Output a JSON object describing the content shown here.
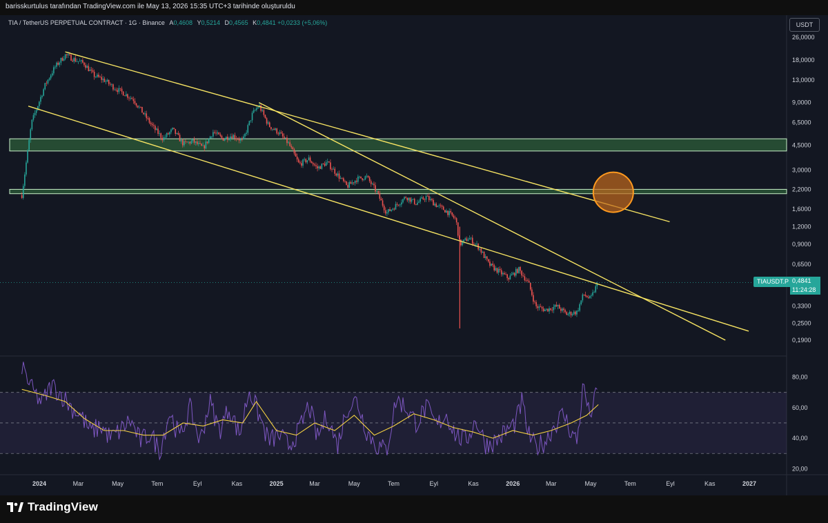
{
  "header": {
    "attribution": "barisskurtulus tarafından TradingView.com ile May 13, 2026 15:35 UTC+3 tarihinde oluşturuldu"
  },
  "legend": {
    "symbol": "TIA / TetherUS PERPETUAL CONTRACT · 1G · Binance",
    "open_label": "A",
    "open": "0,4608",
    "high_label": "Y",
    "high": "0,5214",
    "low_label": "D",
    "low": "0,4565",
    "close_label": "K",
    "close": "0,4841",
    "change": "+0,0233 (+5,06%)"
  },
  "currency": "USDT",
  "price_tag": {
    "symbol": "TIAUSDT.P",
    "price": "0,4841",
    "countdown": "11:24:28"
  },
  "footer": {
    "brand": "TradingView"
  },
  "colors": {
    "background": "#131722",
    "up": "#26a69a",
    "down": "#ef5350",
    "trendline": "#f7e463",
    "zone_fill": "#2e5d3a",
    "zone_border": "#c9f0c9",
    "circle_fill": "#c26a1c",
    "circle_stroke": "#ff9a1f",
    "rsi_line": "#7e57c2",
    "rsi_ma": "#f5d142",
    "rsi_band": "#7e57c2"
  },
  "chart_data": [
    {
      "type": "candlestick",
      "title": "TIA / TetherUS PERPETUAL CONTRACT · 1G · Binance",
      "y_scale": "log",
      "y_ticks": [
        "26,0000",
        "18,0000",
        "13,0000",
        "9,0000",
        "6,5000",
        "4,5000",
        "3,0000",
        "2,2000",
        "1,6000",
        "1,2000",
        "0,9000",
        "0,6500",
        "0,3300",
        "0,2500",
        "0,1900"
      ],
      "x_ticks": [
        "2024",
        "Mar",
        "May",
        "Tem",
        "Eyl",
        "Kas",
        "2025",
        "Mar",
        "May",
        "Tem",
        "Eyl",
        "Kas",
        "2026",
        "Mar",
        "May",
        "Tem",
        "Eyl",
        "Kas",
        "2027"
      ],
      "price_path": [
        [
          "2023-12-05",
          2.0
        ],
        [
          "2023-12-20",
          6.5
        ],
        [
          "2024-01-10",
          12.0
        ],
        [
          "2024-01-25",
          16.0
        ],
        [
          "2024-02-10",
          19.5
        ],
        [
          "2024-02-25",
          18.0
        ],
        [
          "2024-03-10",
          17.0
        ],
        [
          "2024-03-25",
          14.0
        ],
        [
          "2024-04-10",
          13.0
        ],
        [
          "2024-04-25",
          11.5
        ],
        [
          "2024-05-10",
          10.5
        ],
        [
          "2024-05-25",
          9.5
        ],
        [
          "2024-06-10",
          7.5
        ],
        [
          "2024-06-25",
          6.0
        ],
        [
          "2024-07-10",
          5.0
        ],
        [
          "2024-07-25",
          5.8
        ],
        [
          "2024-08-10",
          4.6
        ],
        [
          "2024-08-25",
          4.8
        ],
        [
          "2024-09-10",
          4.3
        ],
        [
          "2024-09-25",
          5.6
        ],
        [
          "2024-10-10",
          5.0
        ],
        [
          "2024-10-25",
          5.3
        ],
        [
          "2024-11-10",
          4.8
        ],
        [
          "2024-11-25",
          7.5
        ],
        [
          "2024-12-05",
          8.6
        ],
        [
          "2024-12-20",
          6.2
        ],
        [
          "2025-01-05",
          5.5
        ],
        [
          "2025-01-20",
          4.6
        ],
        [
          "2025-02-05",
          3.3
        ],
        [
          "2025-02-20",
          3.6
        ],
        [
          "2025-03-05",
          3.1
        ],
        [
          "2025-03-20",
          3.4
        ],
        [
          "2025-04-05",
          2.8
        ],
        [
          "2025-04-20",
          2.3
        ],
        [
          "2025-05-05",
          2.6
        ],
        [
          "2025-05-20",
          2.7
        ],
        [
          "2025-06-05",
          2.1
        ],
        [
          "2025-06-20",
          1.5
        ],
        [
          "2025-07-05",
          1.7
        ],
        [
          "2025-07-20",
          1.95
        ],
        [
          "2025-08-05",
          1.75
        ],
        [
          "2025-08-20",
          1.95
        ],
        [
          "2025-09-05",
          1.7
        ],
        [
          "2025-09-20",
          1.55
        ],
        [
          "2025-10-05",
          1.35
        ],
        [
          "2025-10-11",
          0.9
        ],
        [
          "2025-10-25",
          1.0
        ],
        [
          "2025-11-10",
          0.85
        ],
        [
          "2025-11-25",
          0.65
        ],
        [
          "2025-12-10",
          0.58
        ],
        [
          "2025-12-25",
          0.52
        ],
        [
          "2026-01-10",
          0.6
        ],
        [
          "2026-01-25",
          0.48
        ],
        [
          "2026-02-05",
          0.33
        ],
        [
          "2026-02-20",
          0.31
        ],
        [
          "2026-03-10",
          0.33
        ],
        [
          "2026-03-25",
          0.29
        ],
        [
          "2026-04-10",
          0.3
        ],
        [
          "2026-04-20",
          0.4
        ],
        [
          "2026-05-01",
          0.37
        ],
        [
          "2026-05-08",
          0.44
        ],
        [
          "2026-05-13",
          0.4841
        ]
      ],
      "wick_low": {
        "date": "2025-10-11",
        "value": 0.23
      },
      "trendlines": [
        {
          "name": "upper-resistance",
          "from": [
            "2024-02-10",
            20.5
          ],
          "to": [
            "2026-08-31",
            1.3
          ]
        },
        {
          "name": "channel-support",
          "from": [
            "2023-12-15",
            8.5
          ],
          "to": [
            "2026-12-31",
            0.22
          ]
        },
        {
          "name": "descending-resistance",
          "from": [
            "2024-12-05",
            9.0
          ],
          "to": [
            "2026-11-25",
            0.19
          ]
        }
      ],
      "zones": [
        {
          "name": "upper-supply-zone",
          "from": 4.1,
          "to": 5.0
        },
        {
          "name": "lower-supply-zone",
          "from": 2.05,
          "to": 2.2
        }
      ],
      "highlight": {
        "date": "2026-06-05",
        "value": 2.1
      }
    },
    {
      "type": "line",
      "name": "RSI",
      "y_ticks": [
        "80,00",
        "60,00",
        "40,00",
        "20,00"
      ],
      "ylim": [
        17,
        92
      ],
      "bands": [
        30,
        50,
        70
      ],
      "rsi_path": [
        [
          "2023-12-05",
          88
        ],
        [
          "2023-12-20",
          72
        ],
        [
          "2024-01-05",
          63
        ],
        [
          "2024-01-20",
          75
        ],
        [
          "2024-02-05",
          68
        ],
        [
          "2024-02-20",
          60
        ],
        [
          "2024-03-05",
          55
        ],
        [
          "2024-03-20",
          44
        ],
        [
          "2024-04-05",
          48
        ],
        [
          "2024-04-20",
          40
        ],
        [
          "2024-05-05",
          45
        ],
        [
          "2024-05-20",
          52
        ],
        [
          "2024-06-05",
          38
        ],
        [
          "2024-06-20",
          43
        ],
        [
          "2024-07-05",
          32
        ],
        [
          "2024-07-20",
          57
        ],
        [
          "2024-08-05",
          40
        ],
        [
          "2024-08-20",
          60
        ],
        [
          "2024-09-05",
          38
        ],
        [
          "2024-09-20",
          64
        ],
        [
          "2024-10-05",
          45
        ],
        [
          "2024-10-20",
          60
        ],
        [
          "2024-11-05",
          42
        ],
        [
          "2024-11-20",
          72
        ],
        [
          "2024-12-05",
          55
        ],
        [
          "2024-12-20",
          38
        ],
        [
          "2025-01-05",
          42
        ],
        [
          "2025-01-20",
          35
        ],
        [
          "2025-02-05",
          45
        ],
        [
          "2025-02-20",
          62
        ],
        [
          "2025-03-05",
          40
        ],
        [
          "2025-03-20",
          55
        ],
        [
          "2025-04-05",
          35
        ],
        [
          "2025-04-20",
          60
        ],
        [
          "2025-05-05",
          65
        ],
        [
          "2025-05-20",
          45
        ],
        [
          "2025-06-05",
          35
        ],
        [
          "2025-06-20",
          32
        ],
        [
          "2025-07-05",
          66
        ],
        [
          "2025-07-20",
          60
        ],
        [
          "2025-08-05",
          50
        ],
        [
          "2025-08-20",
          60
        ],
        [
          "2025-09-05",
          48
        ],
        [
          "2025-09-20",
          56
        ],
        [
          "2025-10-05",
          42
        ],
        [
          "2025-10-20",
          38
        ],
        [
          "2025-11-05",
          52
        ],
        [
          "2025-11-20",
          36
        ],
        [
          "2025-12-05",
          38
        ],
        [
          "2025-12-20",
          44
        ],
        [
          "2026-01-05",
          50
        ],
        [
          "2026-01-15",
          64
        ],
        [
          "2026-01-25",
          42
        ],
        [
          "2026-02-05",
          34
        ],
        [
          "2026-02-20",
          38
        ],
        [
          "2026-03-05",
          48
        ],
        [
          "2026-03-20",
          56
        ],
        [
          "2026-04-01",
          44
        ],
        [
          "2026-04-10",
          38
        ],
        [
          "2026-04-20",
          76
        ],
        [
          "2026-04-28",
          56
        ],
        [
          "2026-05-05",
          60
        ],
        [
          "2026-05-13",
          76
        ]
      ],
      "rsi_ma_path": [
        [
          "2023-12-05",
          72
        ],
        [
          "2024-01-10",
          68
        ],
        [
          "2024-02-10",
          64
        ],
        [
          "2024-03-10",
          53
        ],
        [
          "2024-04-10",
          45
        ],
        [
          "2024-05-10",
          45
        ],
        [
          "2024-06-10",
          42
        ],
        [
          "2024-07-10",
          42
        ],
        [
          "2024-08-10",
          50
        ],
        [
          "2024-09-10",
          48
        ],
        [
          "2024-10-10",
          52
        ],
        [
          "2024-11-10",
          50
        ],
        [
          "2024-12-01",
          64
        ],
        [
          "2025-01-01",
          45
        ],
        [
          "2025-02-01",
          42
        ],
        [
          "2025-03-01",
          50
        ],
        [
          "2025-04-01",
          45
        ],
        [
          "2025-05-01",
          55
        ],
        [
          "2025-06-01",
          42
        ],
        [
          "2025-07-01",
          48
        ],
        [
          "2025-08-01",
          56
        ],
        [
          "2025-09-01",
          52
        ],
        [
          "2025-10-01",
          47
        ],
        [
          "2025-11-01",
          44
        ],
        [
          "2025-12-01",
          40
        ],
        [
          "2026-01-01",
          45
        ],
        [
          "2026-02-01",
          42
        ],
        [
          "2026-03-01",
          45
        ],
        [
          "2026-04-01",
          50
        ],
        [
          "2026-04-25",
          55
        ],
        [
          "2026-05-13",
          62
        ]
      ]
    }
  ]
}
